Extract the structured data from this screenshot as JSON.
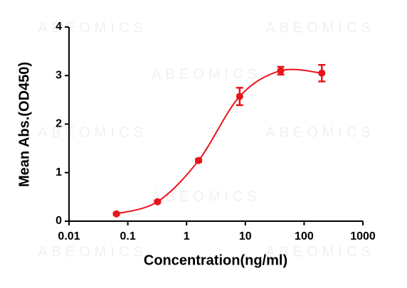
{
  "chart_data": {
    "type": "scatter",
    "watermark": "ABEOMICS",
    "xlabel": "Concentration(ng/ml)",
    "ylabel": "Mean Abs.(OD450)",
    "x": [
      0.064,
      0.32,
      1.6,
      8,
      40,
      200
    ],
    "values": [
      0.15,
      0.4,
      1.25,
      2.57,
      3.1,
      3.05
    ],
    "errors": [
      0.02,
      0.02,
      0.03,
      0.18,
      0.08,
      0.17
    ],
    "color": "#e8141c",
    "xscale": "log",
    "xlim": [
      0.01,
      1000
    ],
    "xticks": [
      0.01,
      0.1,
      1,
      10,
      100,
      1000
    ],
    "ylim": [
      0,
      4
    ],
    "yticks": [
      0,
      1,
      2,
      3,
      4
    ]
  }
}
